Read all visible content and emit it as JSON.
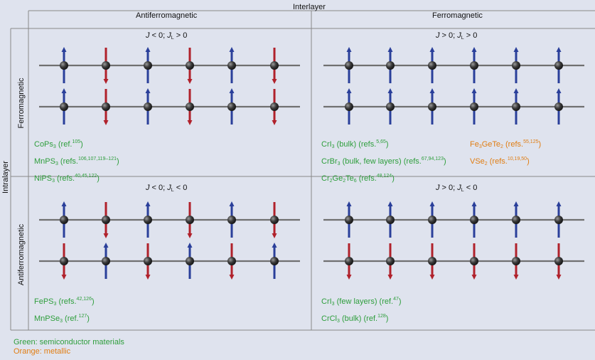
{
  "header": {
    "interlayer": "Interlayer",
    "intralayer": "Intralayer"
  },
  "columns": {
    "left": "Antiferromagnetic",
    "right": "Ferromagnetic"
  },
  "rows": {
    "top": "Ferromagnetic",
    "bottom": "Antiferromagnetic"
  },
  "panels": {
    "top_left": {
      "condition": {
        "j": "J",
        "jop": " < 0; ",
        "jl": "J",
        "jlsub": "L",
        "jlop": " > 0"
      }
    },
    "top_right": {
      "condition": {
        "j": "J",
        "jop": " > 0; ",
        "jl": "J",
        "jlsub": "L",
        "jlop": " > 0"
      }
    },
    "bottom_left": {
      "condition": {
        "j": "J",
        "jop": " < 0; ",
        "jl": "J",
        "jlsub": "L",
        "jlop": " < 0"
      }
    },
    "bottom_right": {
      "condition": {
        "j": "J",
        "jop": " > 0; ",
        "jl": "J",
        "jlsub": "L",
        "jlop": " < 0"
      }
    }
  },
  "materials": {
    "tl_1": {
      "f": "CoPs",
      "s": "3",
      "t": " (ref.",
      "r": "105",
      "e": ")"
    },
    "tl_2": {
      "f": "MnPS",
      "s": "3",
      "t": " (refs.",
      "r": "106,107,119–121",
      "e": ")"
    },
    "tl_3": {
      "f": "NiPS",
      "s": "3",
      "t": " (refs.",
      "r": "40,45,122",
      "e": ")"
    },
    "tr_1": {
      "f": "CrI",
      "s": "3",
      "t": " (bulk) (refs.",
      "r": "5,65",
      "e": ")"
    },
    "tr_2": {
      "f": "CrBr",
      "s": "3",
      "t": " (bulk, few layers) (refs.",
      "r": "67,94,123",
      "e": ")"
    },
    "tr_3": {
      "a": "Cr",
      "as": "2",
      "b": "Ge",
      "bs": "2",
      "c": "Te",
      "cs": "6",
      "t": " (refs.",
      "r": "48,124",
      "e": ")"
    },
    "tr_4": {
      "a": "Fe",
      "as": "3",
      "b": "GeTe",
      "bs": "2",
      "t": " (refs.",
      "r": "55,125",
      "e": ")"
    },
    "tr_5": {
      "f": "VSe",
      "s": "2",
      "t": " (refs.",
      "r": "10,19,50",
      "e": ")"
    },
    "bl_1": {
      "f": "FePS",
      "s": "3",
      "t": " (refs.",
      "r": "42,126",
      "e": ")"
    },
    "bl_2": {
      "f": "MnPSe",
      "s": "3",
      "t": " (ref.",
      "r": "127",
      "e": ")"
    },
    "br_1": {
      "f": "CrI",
      "s": "3",
      "t": " (few layers) (ref.",
      "r": "47",
      "e": ")"
    },
    "br_2": {
      "f": "CrCl",
      "s": "3",
      "t": " (bulk) (ref.",
      "r": "128",
      "e": ")"
    }
  },
  "legend": {
    "green": "Green: semiconductor materials",
    "orange": "Orange: metallic"
  },
  "colors": {
    "green": "#2e9e3c",
    "orange": "#e07d12",
    "spin_blue": "#2a3f9a",
    "spin_red": "#b0212b",
    "atom": "#3a3a3a",
    "chain": "#707070"
  }
}
